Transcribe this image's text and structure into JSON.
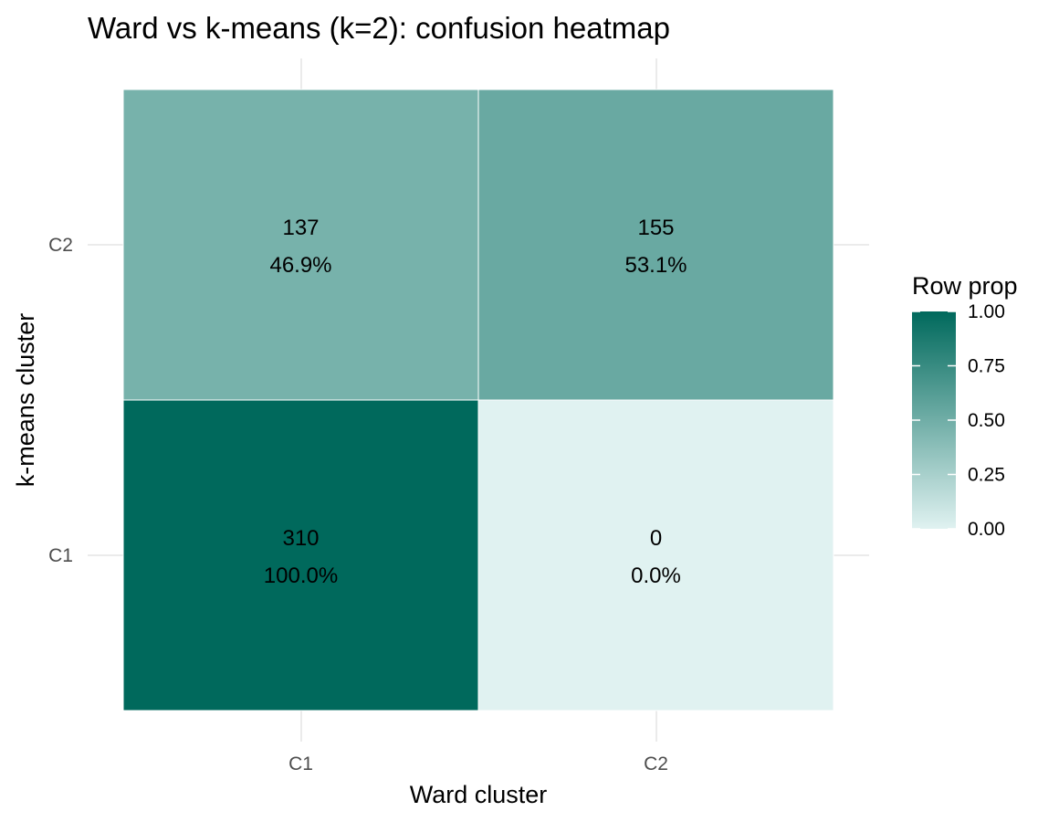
{
  "chart_data": {
    "type": "heatmap",
    "title": "Ward vs k-means (k=2): confusion heatmap",
    "xlabel": "Ward cluster",
    "ylabel": "k-means cluster",
    "x_categories": [
      "C1",
      "C2"
    ],
    "y_categories": [
      "C1",
      "C2"
    ],
    "cells": [
      {
        "x": "C1",
        "y": "C2",
        "count": "137",
        "pct": "46.9%",
        "value": 0.469
      },
      {
        "x": "C2",
        "y": "C2",
        "count": "155",
        "pct": "53.1%",
        "value": 0.531
      },
      {
        "x": "C1",
        "y": "C1",
        "count": "310",
        "pct": "100.0%",
        "value": 1.0
      },
      {
        "x": "C2",
        "y": "C1",
        "count": "0",
        "pct": "0.0%",
        "value": 0.0
      }
    ],
    "legend": {
      "title": "Row prop",
      "position": "right",
      "ticks": [
        "0.00",
        "0.25",
        "0.50",
        "0.75",
        "1.00"
      ],
      "range": [
        0,
        1
      ],
      "low_color": "#e0f2f1",
      "high_color": "#00695c"
    },
    "grid": true
  }
}
